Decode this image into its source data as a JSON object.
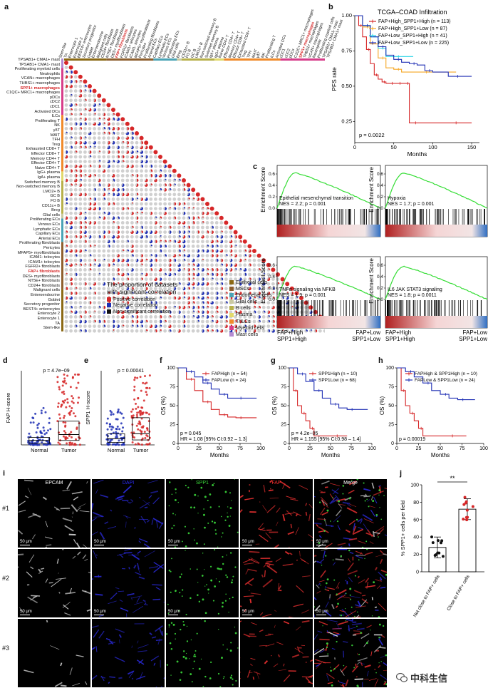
{
  "panels": {
    "a": {
      "label": "a",
      "rows": [
        "Stem-like",
        "TA",
        "Enterocyte 1",
        "Enterocyte 2",
        "BEST4+ enterocytes",
        "Secretory progenitor",
        "Goblet",
        "Enteroendocrine",
        "Malignant cells",
        "CD24+ fibroblasts",
        "NT5E+ fibroblasts",
        "DES+ myofibroblasts",
        "FAP+ fibroblasts",
        "FGFR2+ fibroblasts",
        "ICAM1+ telocytes",
        "ICAM1- telocytes",
        "MFAP5+ myofibroblasts",
        "Pericytes",
        "Proliferating fibroblasts",
        "Arterial ECs",
        "Capillary ECs",
        "Lymphatic ECs",
        "Venous ECs",
        "Proliferating ECs",
        "Glial cells",
        "Breg",
        "CD11c+ B",
        "FO B",
        "GC B",
        "LMO2+ B",
        "Non-switched memory B",
        "Switched memory B",
        "IgA+ plasma",
        "IgG+ plasma",
        "Naive CD4+ T",
        "Effector CD4+ T",
        "Memory CD4+ T",
        "Effector CD8+ T",
        "Exhausted CD8+ T",
        "Treg",
        "TFH",
        "MAIT",
        "γδT",
        "NK",
        "Proliferating T",
        "ILCs",
        "Activated DCs",
        "cDC1",
        "cDC2",
        "pDCs",
        "C1QC+ MRC1+ macrophages",
        "SPP1+ macrophages",
        "THBS1+ macrophages",
        "VCAN+ macrophages",
        "Neutrophils",
        "Proliferating myeloid cells",
        "TPSAB1+ CMA1- mast",
        "TPSAB1+ CMA1+ mast"
      ],
      "highlight_rows": [
        "FAP+ fibroblasts",
        "SPP1+ macrophages"
      ],
      "row_groups": [
        {
          "name": "Epithelial cells",
          "color": "#8b6914",
          "count": 9
        },
        {
          "name": "MSCs",
          "color": "#8e5f2e",
          "count": 10
        },
        {
          "name": "Endothelial cells",
          "color": "#4aa3b5",
          "count": 5
        },
        {
          "name": "Glial cells",
          "color": "#c9c9a0",
          "count": 1
        },
        {
          "name": "B cells",
          "color": "#b7b04a",
          "count": 7
        },
        {
          "name": "Plasma",
          "color": "#e1d96b",
          "count": 2
        },
        {
          "name": "T/ILCs",
          "color": "#f08a2a",
          "count": 12
        },
        {
          "name": "Myeloid cells",
          "color": "#d73d8a",
          "count": 10
        },
        {
          "name": "Mast cells",
          "color": "#b38bd1",
          "count": 2
        }
      ],
      "legend_title_1": "The proportion of datasets",
      "legend_title_2": "with significant correlation",
      "legend_items": [
        {
          "label": "Positive correlation",
          "color": "#d62728"
        },
        {
          "label": "Negative correlation",
          "color": "#1f2fb4"
        },
        {
          "label": "Non-significant correlation",
          "color": "#111111"
        }
      ]
    },
    "b": {
      "label": "b",
      "chart_data": {
        "type": "line",
        "title": "TCGA–COAD Infiltration",
        "xlabel": "Months",
        "ylabel": "PFS rate",
        "xlim": [
          0,
          160
        ],
        "ylim": [
          0.1,
          1.0
        ],
        "xticks": [
          0,
          50,
          100,
          150
        ],
        "yticks": [
          0.25,
          0.5,
          0.75,
          1.0
        ],
        "annotation": "p = 0.0022",
        "series": [
          {
            "name": "FAP+High_SPP1+High (n = 113)",
            "color": "#d62728",
            "x": [
              0,
              5,
              10,
              15,
              20,
              25,
              30,
              35,
              40,
              45,
              50,
              55,
              60,
              65,
              70,
              75,
              80,
              100,
              150
            ],
            "y": [
              1.0,
              0.93,
              0.85,
              0.76,
              0.66,
              0.58,
              0.55,
              0.53,
              0.52,
              0.52,
              0.52,
              0.52,
              0.52,
              0.52,
              0.24,
              0.24,
              0.24,
              0.24,
              0.24
            ]
          },
          {
            "name": "FAP+High_SPP1+Low (n = 87)",
            "color": "#f5a623",
            "x": [
              0,
              10,
              20,
              30,
              40,
              50,
              60,
              80,
              100,
              130
            ],
            "y": [
              1.0,
              0.92,
              0.8,
              0.7,
              0.63,
              0.62,
              0.6,
              0.6,
              0.6,
              0.6
            ]
          },
          {
            "name": "FAP+Low_SPP1+High (n = 41)",
            "color": "#22d3e6",
            "x": [
              0,
              10,
              20,
              30,
              40,
              50,
              60,
              75
            ],
            "y": [
              1.0,
              0.93,
              0.85,
              0.77,
              0.71,
              0.71,
              0.71,
              0.71
            ]
          },
          {
            "name": "FAP+Low_SPP1+Low (n = 225)",
            "color": "#1f2fb4",
            "x": [
              0,
              10,
              20,
              30,
              40,
              50,
              60,
              70,
              80,
              90,
              100,
              120,
              140,
              150
            ],
            "y": [
              1.0,
              0.93,
              0.85,
              0.78,
              0.72,
              0.69,
              0.67,
              0.66,
              0.65,
              0.61,
              0.6,
              0.57,
              0.57,
              0.57
            ]
          }
        ]
      }
    },
    "c": {
      "label": "c",
      "chart_data": [
        {
          "type": "line",
          "title": "Epithelial mesenchymal transition",
          "stats": "NES = 2.2; p = 0.001",
          "ylabel": "Enrichment Score",
          "yticks": [
            "0.0",
            "0.2",
            "0.4",
            "0.6"
          ],
          "peak": 0.62
        },
        {
          "type": "line",
          "title": "Hypoxia",
          "stats": "NES = 1.7; p = 0.001",
          "ylabel": "Enrichment Score",
          "yticks": [
            "0.0",
            "0.2",
            "0.4",
            "0.6"
          ],
          "peak": 0.62
        },
        {
          "type": "line",
          "title": "TNFα signaling via NFKB",
          "stats": "NES = 1.9; p = 0.001",
          "ylabel": "Enrichment Score",
          "yticks": [
            "0.0",
            "0.2",
            "0.4",
            "0.6"
          ],
          "peak": 0.58
        },
        {
          "type": "line",
          "title": "IL6 JAK STAT3 signaling",
          "stats": "NES = 1.8; p = 0.0011",
          "ylabel": "Enrichment Score",
          "yticks": [
            "0.0",
            "0.2",
            "0.4",
            "0.6"
          ],
          "peak": 0.58
        }
      ],
      "axis_left_1": "FAP+High",
      "axis_left_2": "SPP1+High",
      "axis_right_1": "FAP+Low",
      "axis_right_2": "SPP1+Low"
    },
    "d": {
      "label": "d",
      "chart_data": {
        "type": "scatter",
        "ylabel": "FAP H-score",
        "categories": [
          "Normal",
          "Tumor"
        ],
        "annotation": "p = 4.7e−09",
        "box": [
          {
            "q1": 2,
            "median": 6,
            "q3": 10
          },
          {
            "q1": 6,
            "median": 14,
            "q3": 32
          }
        ]
      }
    },
    "e": {
      "label": "e",
      "chart_data": {
        "type": "scatter",
        "ylabel": "SPP1 H-score",
        "categories": [
          "Normal",
          "Tumor"
        ],
        "annotation": "p = 0.00041",
        "box": [
          {
            "q1": 2,
            "median": 5,
            "q3": 9
          },
          {
            "q1": 4,
            "median": 9,
            "q3": 22
          }
        ]
      }
    },
    "f": {
      "label": "f",
      "chart_data": {
        "type": "line",
        "xlabel": "Months",
        "ylabel": "OS (%)",
        "xticks": [
          0,
          25,
          50,
          75,
          100
        ],
        "yticks": [
          0,
          25,
          50,
          75,
          100
        ],
        "annotation": "p = 0.045",
        "annotation2": "HR = 1.08 [95% CI:0.92 – 1.3]",
        "series": [
          {
            "name": "FAPHigh (n = 54)",
            "color": "#d62728",
            "x": [
              0,
              10,
              20,
              30,
              40,
              50,
              60,
              70,
              80,
              95
            ],
            "y": [
              100,
              85,
              70,
              55,
              45,
              38,
              35,
              34,
              34,
              34
            ]
          },
          {
            "name": "FAPLow (n = 24)",
            "color": "#1f2fb4",
            "x": [
              0,
              10,
              20,
              30,
              40,
              50,
              60,
              70,
              80,
              95
            ],
            "y": [
              100,
              95,
              88,
              80,
              72,
              65,
              60,
              60,
              60,
              60
            ]
          }
        ]
      }
    },
    "g": {
      "label": "g",
      "chart_data": {
        "type": "line",
        "xlabel": "Months",
        "ylabel": "OS (%)",
        "xticks": [
          0,
          25,
          50,
          75,
          100
        ],
        "yticks": [
          0,
          25,
          50,
          75,
          100
        ],
        "annotation": "p = 4.2e−05",
        "annotation2": "HR = 1.155 [95% CI:0.98 – 1.4]",
        "series": [
          {
            "name": "SPP1High (n = 10)",
            "color": "#d62728",
            "x": [
              0,
              5,
              10,
              15,
              20,
              25,
              30,
              40,
              70
            ],
            "y": [
              100,
              70,
              50,
              40,
              30,
              20,
              10,
              10,
              10
            ]
          },
          {
            "name": "SPP1Low (n = 68)",
            "color": "#1f2fb4",
            "x": [
              0,
              10,
              20,
              30,
              40,
              50,
              60,
              70,
              80,
              95
            ],
            "y": [
              100,
              92,
              82,
              70,
              60,
              52,
              47,
              45,
              45,
              45
            ]
          }
        ]
      }
    },
    "h": {
      "label": "h",
      "chart_data": {
        "type": "line",
        "xlabel": "Months",
        "ylabel": "OS (%)",
        "xticks": [
          0,
          25,
          50,
          75,
          100
        ],
        "yticks": [
          0,
          25,
          50,
          75,
          100
        ],
        "annotation": "p = 0.00019",
        "series": [
          {
            "name": "FAPHigh & SPP1High (n = 10)",
            "color": "#d62728",
            "x": [
              0,
              5,
              10,
              15,
              20,
              25,
              30,
              40,
              80
            ],
            "y": [
              100,
              70,
              50,
              40,
              30,
              20,
              10,
              10,
              10
            ]
          },
          {
            "name": "FAPLow & SPP1Low (n = 24)",
            "color": "#1f2fb4",
            "x": [
              0,
              10,
              20,
              30,
              40,
              50,
              60,
              70,
              80,
              90
            ],
            "y": [
              100,
              95,
              88,
              80,
              70,
              65,
              60,
              58,
              58,
              58
            ]
          }
        ]
      }
    },
    "i": {
      "label": "i",
      "columns": [
        "EPCAM",
        "DAPI",
        "SPP1",
        "FAP",
        "Merge"
      ],
      "column_colors": [
        "#ffffff",
        "#2b2bff",
        "#39d839",
        "#ff3030",
        "#ffffff"
      ],
      "rows": [
        "#1",
        "#2",
        "#3"
      ],
      "scale": "50 μm"
    },
    "j": {
      "label": "j",
      "chart_data": {
        "type": "bar",
        "ylabel": "% SPP1+ cells per field",
        "categories": [
          "Not close to FAP+ cells",
          "Close to FAP+ cells"
        ],
        "values": [
          28,
          72
        ],
        "ylim": [
          0,
          100
        ],
        "yticks": [
          0,
          20,
          40,
          60,
          80,
          100
        ],
        "significance": "**",
        "point_colors": [
          "#111111",
          "#d62728"
        ]
      }
    }
  },
  "watermark": "中科生信"
}
